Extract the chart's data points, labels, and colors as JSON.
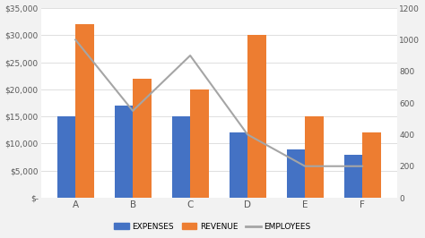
{
  "categories": [
    "A",
    "B",
    "C",
    "D",
    "E",
    "F"
  ],
  "expenses": [
    15000,
    17000,
    15000,
    12000,
    9000,
    8000
  ],
  "revenue": [
    32000,
    22000,
    20000,
    30000,
    15000,
    12000
  ],
  "employees": [
    1000,
    550,
    900,
    400,
    200,
    200
  ],
  "bar_color_expenses": "#4472C4",
  "bar_color_revenue": "#ED7D31",
  "line_color_employees": "#A5A5A5",
  "primary_ylim": [
    0,
    35000
  ],
  "primary_yticks": [
    0,
    5000,
    10000,
    15000,
    20000,
    25000,
    30000,
    35000
  ],
  "secondary_ylim": [
    0,
    1200
  ],
  "secondary_yticks": [
    0,
    200,
    400,
    600,
    800,
    1000,
    1200
  ],
  "primary_yticklabels": [
    "$-",
    "$5,000",
    "$10,000",
    "$15,000",
    "$20,000",
    "$25,000",
    "$30,000",
    "$35,000"
  ],
  "secondary_yticklabels": [
    "0",
    "200",
    "400",
    "600",
    "800",
    "1000",
    "1200"
  ],
  "legend_labels": [
    "EXPENSES",
    "REVENUE",
    "EMPLOYEES"
  ],
  "outer_bg": "#F2F2F2",
  "inner_bg": "#FFFFFF",
  "bar_width": 0.32
}
